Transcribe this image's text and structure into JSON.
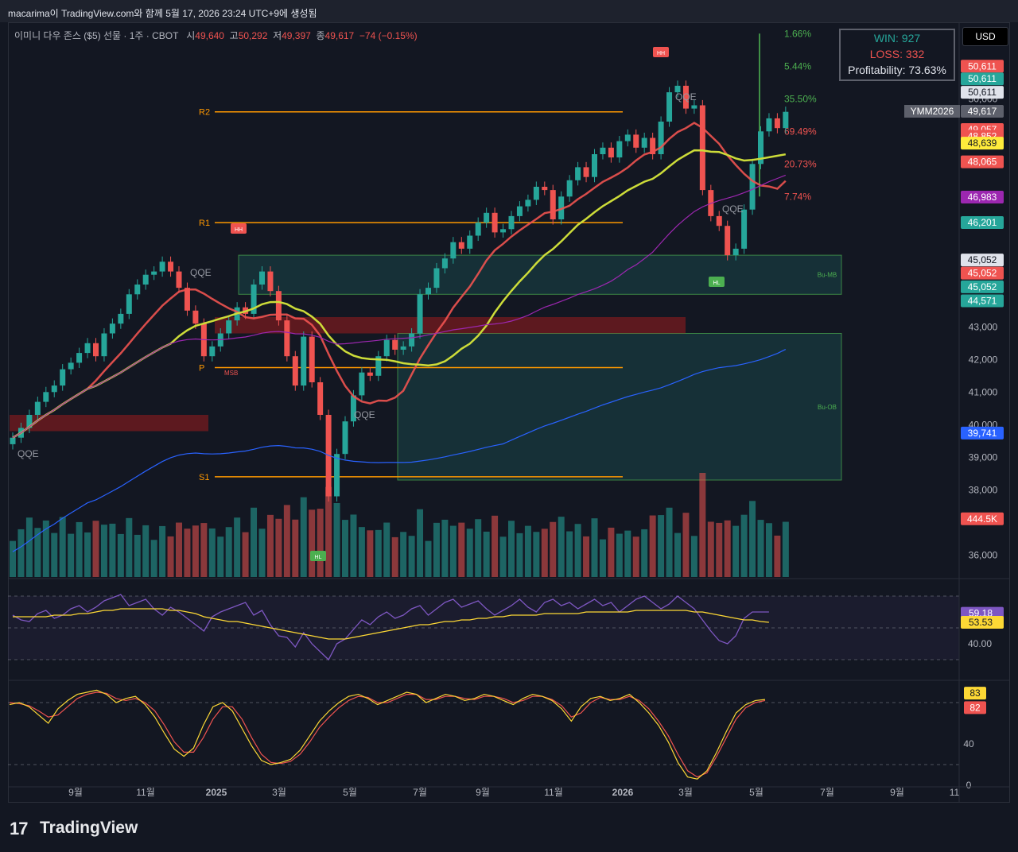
{
  "header": {
    "caption": "macarima이 TradingView.com와 함께 5월 17, 2026 23:24 UTC+9에 생성됨"
  },
  "legend": {
    "symbol": "이미니 다우 존스 ($5) 선물 · 1주 · CBOT",
    "open_label": "시",
    "open": "49,640",
    "high_label": "고",
    "high": "50,292",
    "low_label": "저",
    "low": "49,397",
    "close_label": "종",
    "close": "49,617",
    "change": "−74 (−0.15%)"
  },
  "stats": {
    "win": "WIN: 927",
    "loss": "LOSS: 332",
    "profitability": "Profitability: 73.63%"
  },
  "currency_button": "USD",
  "colors": {
    "up": "#26a69a",
    "down": "#ef5350",
    "orange": "#ff9800",
    "background": "#131722"
  },
  "chart_data": [
    {
      "type": "candlestick",
      "title": "",
      "interval": "1주",
      "yscale": "linear",
      "ylim": [
        35300,
        52300
      ],
      "x_ticks": [
        "9월",
        "11월",
        "2025",
        "3월",
        "5월",
        "7월",
        "9월",
        "11월",
        "2026",
        "3월",
        "5월",
        "7월",
        "9월",
        "11"
      ],
      "y_ticks": [
        "36,000",
        "38,000",
        "39,000",
        "40,000",
        "41,000",
        "42,000",
        "43,000",
        "50,000"
      ],
      "start_week": "2024-07-29",
      "closes": [
        39600,
        39900,
        40300,
        40700,
        41000,
        41200,
        41700,
        41900,
        42200,
        42500,
        42100,
        42800,
        43100,
        43400,
        44000,
        44300,
        44600,
        44700,
        45000,
        44700,
        44200,
        43500,
        43100,
        42100,
        42400,
        42800,
        43200,
        43600,
        43400,
        44300,
        44700,
        44100,
        43200,
        42100,
        41200,
        42700,
        41300,
        40300,
        37800,
        39100,
        40100,
        40900,
        41600,
        41500,
        42100,
        42600,
        42300,
        42400,
        42800,
        44000,
        44200,
        44800,
        45100,
        45600,
        45400,
        45800,
        46200,
        46500,
        45900,
        46000,
        46400,
        46700,
        46900,
        47300,
        47200,
        46300,
        47000,
        47500,
        47900,
        47600,
        48300,
        48500,
        48200,
        48700,
        48900,
        48500,
        48800,
        48300,
        49300,
        50200,
        50400,
        49700,
        49800,
        47200,
        46400,
        46100,
        45200,
        45400,
        46600,
        48000,
        49000,
        49400,
        49100,
        49600
      ],
      "volume_ticks_note": "",
      "price_labels": [
        {
          "label": "",
          "value": "50,611",
          "price": 51000
        },
        {
          "label": "",
          "value": "50,611",
          "price": 50611
        },
        {
          "label": "",
          "value": "50,611",
          "price": 50200
        },
        {
          "label": "YMM2026",
          "value": "49,617",
          "price": 49617
        },
        {
          "label": "",
          "value": "49,057",
          "price": 49057
        },
        {
          "label": "",
          "value": "48,852",
          "price": 48852
        },
        {
          "label": "",
          "value": "48,639",
          "price": 48639
        },
        {
          "label": "",
          "value": "48,065",
          "price": 48065
        },
        {
          "label": "",
          "value": "46,983",
          "price": 46983
        },
        {
          "label": "",
          "value": "46,201",
          "price": 46201
        },
        {
          "label": "",
          "value": "45,052",
          "price": 45052
        },
        {
          "label": "",
          "value": "45,052",
          "price": 44650
        },
        {
          "label": "",
          "value": "45,052",
          "price": 44230
        },
        {
          "label": "",
          "value": "44,571",
          "price": 43800
        },
        {
          "label": "",
          "value": "39,741",
          "price": 39741
        },
        {
          "label": "",
          "value": "444.5K",
          "price": 37110
        }
      ],
      "pivot_levels": [
        {
          "label": "R2",
          "price": 49600
        },
        {
          "label": "R1",
          "price": 46200
        },
        {
          "label": "P",
          "price": 41750
        },
        {
          "label": "S1",
          "price": 38400
        }
      ],
      "fib_labels": [
        {
          "label": "1.66%",
          "price": 52000
        },
        {
          "label": "5.44%",
          "price": 51000
        },
        {
          "label": "35.50%",
          "price": 50000
        },
        {
          "label": "69.49%",
          "price": 49000
        },
        {
          "label": "20.73%",
          "price": 48000
        },
        {
          "label": "7.74%",
          "price": 47000
        }
      ],
      "zones": [
        {
          "label": "Bu-MB",
          "from": 44000,
          "to": 45200
        },
        {
          "label": "Bu-OB",
          "from": 38300,
          "to": 42800
        }
      ],
      "annotations": [
        "QQE",
        "QQE",
        "QQE",
        "QQE",
        "QQE",
        "HH",
        "HH",
        "HL",
        "HL",
        "MSB"
      ]
    },
    {
      "type": "line",
      "title": "",
      "ylim": [
        20,
        80
      ],
      "y_ticks": [
        "40.00"
      ],
      "series_values": [
        "59.18",
        "53.53"
      ],
      "series": [
        {
          "values": [
            58,
            55,
            54,
            59,
            61,
            56,
            58,
            62,
            64,
            60,
            63,
            67,
            69,
            71,
            64,
            66,
            68,
            62,
            58,
            63,
            60,
            56,
            52,
            48,
            57,
            60,
            62,
            64,
            66,
            58,
            61,
            52,
            45,
            44,
            38,
            47,
            40,
            35,
            30,
            40,
            43,
            49,
            55,
            52,
            57,
            60,
            56,
            58,
            62,
            64,
            58,
            62,
            66,
            68,
            63,
            65,
            67,
            62,
            58,
            61,
            64,
            68,
            63,
            60,
            66,
            68,
            64,
            66,
            62,
            65,
            68,
            64,
            66,
            60,
            64,
            68,
            70,
            66,
            62,
            65,
            70,
            66,
            62,
            55,
            48,
            42,
            40,
            45,
            56,
            60,
            60,
            60
          ]
        },
        {
          "values": [
            57,
            57,
            57,
            57,
            57,
            58,
            58,
            58,
            59,
            59,
            60,
            61,
            61,
            62,
            62,
            62,
            62,
            62,
            62,
            61,
            61,
            60,
            59,
            57,
            56,
            55,
            54,
            54,
            53,
            52,
            51,
            50,
            49,
            48,
            47,
            46,
            45,
            44,
            43,
            43,
            43,
            44,
            45,
            46,
            47,
            48,
            49,
            50,
            51,
            52,
            52,
            53,
            54,
            54,
            55,
            55,
            56,
            56,
            57,
            57,
            58,
            58,
            58,
            58,
            59,
            59,
            59,
            59,
            59,
            60,
            60,
            60,
            60,
            60,
            60,
            61,
            61,
            61,
            61,
            61,
            61,
            61,
            60,
            60,
            59,
            58,
            57,
            56,
            55,
            55,
            54,
            53.5
          ]
        }
      ]
    },
    {
      "type": "line",
      "title": "",
      "ylim": [
        0,
        100
      ],
      "y_ticks": [
        "40",
        "0"
      ],
      "series_values": [
        "83",
        "82"
      ],
      "series": [
        {
          "values": [
            78,
            80,
            76,
            68,
            60,
            74,
            82,
            88,
            90,
            92,
            88,
            80,
            84,
            86,
            78,
            66,
            50,
            35,
            28,
            36,
            58,
            76,
            80,
            72,
            55,
            38,
            24,
            20,
            22,
            25,
            34,
            48,
            62,
            72,
            80,
            86,
            88,
            84,
            78,
            82,
            86,
            90,
            88,
            80,
            84,
            88,
            86,
            82,
            84,
            88,
            86,
            82,
            78,
            84,
            88,
            86,
            82,
            74,
            62,
            76,
            84,
            86,
            82,
            84,
            88,
            80,
            70,
            58,
            42,
            22,
            8,
            6,
            14,
            32,
            52,
            70,
            78,
            82,
            83
          ]
        },
        {
          "values": [
            80,
            79,
            77,
            72,
            66,
            68,
            76,
            84,
            88,
            90,
            89,
            84,
            82,
            84,
            80,
            72,
            58,
            42,
            32,
            32,
            46,
            64,
            76,
            76,
            64,
            46,
            30,
            22,
            21,
            23,
            30,
            42,
            56,
            66,
            75,
            82,
            86,
            85,
            80,
            80,
            84,
            88,
            88,
            83,
            83,
            86,
            86,
            84,
            83,
            86,
            86,
            84,
            80,
            82,
            86,
            86,
            83,
            77,
            66,
            70,
            80,
            85,
            83,
            83,
            86,
            82,
            74,
            62,
            48,
            30,
            14,
            8,
            12,
            28,
            46,
            64,
            75,
            80,
            82
          ]
        }
      ]
    }
  ]
}
